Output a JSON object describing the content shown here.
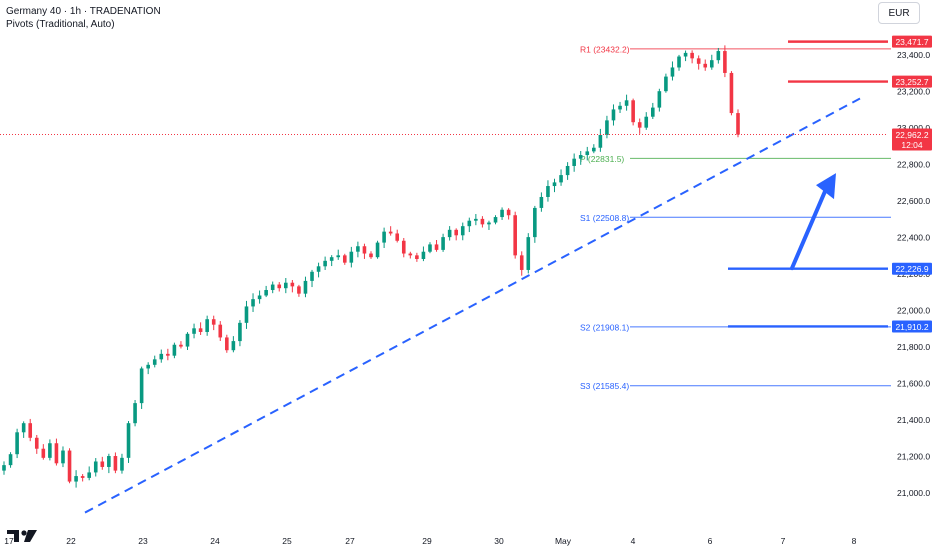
{
  "header": {
    "title": "Germany 40 · 1h · TRADENATION",
    "indicator": "Pivots (Traditional, Auto)"
  },
  "currency": "EUR",
  "colors": {
    "up": "#089981",
    "down": "#f23645",
    "resistance": "#f23645",
    "support": "#2962ff",
    "pivot": "#4caf50",
    "trendline": "#2962ff",
    "arrow": "#2962ff"
  },
  "chart_data": {
    "type": "candlestick",
    "symbol": "Germany 40",
    "timeframe": "1h",
    "ylim": [
      20900,
      23580
    ],
    "y_ticks": [
      21000,
      21200,
      21400,
      21600,
      21800,
      22000,
      22200,
      22400,
      22600,
      22800,
      23000,
      23200,
      23400
    ],
    "y_tick_labels": [
      "21,000.0",
      "21,200.0",
      "21,400.0",
      "21,600.0",
      "21,800.0",
      "22,000.0",
      "22,200.0",
      "22,400.0",
      "22,600.0",
      "22,800.0",
      "23,000.0",
      "23,200.0",
      "23,400.0"
    ],
    "x_ticks": [
      "17",
      "22",
      "23",
      "24",
      "25",
      "27",
      "29",
      "30",
      "May",
      "4",
      "6",
      "7",
      "8"
    ],
    "last_price": {
      "value": "22,962.2",
      "countdown": "12:04"
    },
    "pivot_levels": [
      {
        "name": "R1",
        "label": "R1 (23432.2)",
        "value": 23432.2,
        "kind": "resistance"
      },
      {
        "name": "P",
        "label": "P (22831.5)",
        "value": 22831.5,
        "kind": "pivot"
      },
      {
        "name": "S1",
        "label": "S1 (22508.8)",
        "value": 22508.8,
        "kind": "support"
      },
      {
        "name": "S2",
        "label": "S2 (21908.1)",
        "value": 21908.1,
        "kind": "support"
      },
      {
        "name": "S3",
        "label": "S3 (21585.4)",
        "value": 21585.4,
        "kind": "support"
      }
    ],
    "key_levels": [
      {
        "value": 23471.7,
        "label": "23,471.7",
        "kind": "resistance"
      },
      {
        "value": 23252.7,
        "label": "23,252.7",
        "kind": "resistance"
      },
      {
        "value": 22226.9,
        "label": "22,226.9",
        "kind": "support"
      },
      {
        "value": 21910.2,
        "label": "21,910.2",
        "kind": "support"
      }
    ],
    "trendline": {
      "from": 20890,
      "to": 23160,
      "style": "dashed"
    },
    "arrow": {
      "from": 22230,
      "to": 22740,
      "direction": "up"
    },
    "closes": [
      21150,
      21210,
      21330,
      21380,
      21300,
      21240,
      21190,
      21270,
      21160,
      21230,
      21060,
      21090,
      21080,
      21110,
      21170,
      21140,
      21200,
      21120,
      21190,
      21380,
      21490,
      21680,
      21700,
      21730,
      21760,
      21750,
      21810,
      21800,
      21870,
      21900,
      21880,
      21950,
      21920,
      21850,
      21780,
      21830,
      21930,
      22020,
      22060,
      22080,
      22110,
      22140,
      22120,
      22150,
      22130,
      22090,
      22160,
      22210,
      22240,
      22270,
      22290,
      22300,
      22260,
      22320,
      22350,
      22310,
      22290,
      22370,
      22430,
      22420,
      22380,
      22310,
      22300,
      22280,
      22320,
      22360,
      22330,
      22400,
      22440,
      22410,
      22460,
      22490,
      22500,
      22470,
      22480,
      22510,
      22550,
      22520,
      22300,
      22220,
      22400,
      22560,
      22620,
      22680,
      22700,
      22740,
      22790,
      22830,
      22850,
      22870,
      22890,
      22960,
      23040,
      23100,
      23120,
      23150,
      23030,
      23000,
      23060,
      23110,
      23200,
      23280,
      23330,
      23390,
      23410,
      23380,
      23350,
      23330,
      23370,
      23420,
      23300,
      23080,
      22962
    ]
  },
  "watermark": "TV"
}
